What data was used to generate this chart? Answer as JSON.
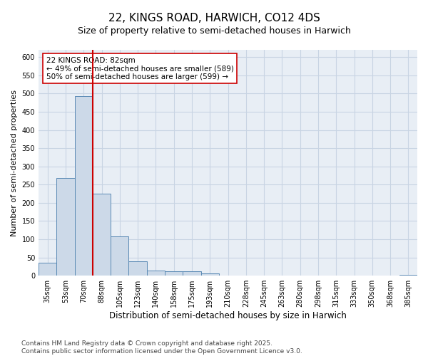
{
  "title": "22, KINGS ROAD, HARWICH, CO12 4DS",
  "subtitle": "Size of property relative to semi-detached houses in Harwich",
  "xlabel": "Distribution of semi-detached houses by size in Harwich",
  "ylabel": "Number of semi-detached properties",
  "categories": [
    "35sqm",
    "53sqm",
    "70sqm",
    "88sqm",
    "105sqm",
    "123sqm",
    "140sqm",
    "158sqm",
    "175sqm",
    "193sqm",
    "210sqm",
    "228sqm",
    "245sqm",
    "263sqm",
    "280sqm",
    "298sqm",
    "315sqm",
    "333sqm",
    "350sqm",
    "368sqm",
    "385sqm"
  ],
  "values": [
    35,
    268,
    493,
    225,
    108,
    40,
    15,
    13,
    13,
    7,
    1,
    0,
    1,
    0,
    0,
    0,
    0,
    0,
    1,
    0,
    2
  ],
  "bar_color": "#ccd9e8",
  "bar_edge_color": "#5b8ab5",
  "vline_color": "#cc0000",
  "annotation_text": "22 KINGS ROAD: 82sqm\n← 49% of semi-detached houses are smaller (589)\n50% of semi-detached houses are larger (599) →",
  "annotation_box_color": "#ffffff",
  "annotation_box_edge": "#cc0000",
  "ylim": [
    0,
    620
  ],
  "yticks": [
    0,
    50,
    100,
    150,
    200,
    250,
    300,
    350,
    400,
    450,
    500,
    550,
    600
  ],
  "grid_color": "#c8d4e3",
  "bg_color": "#e8eef5",
  "footer": "Contains HM Land Registry data © Crown copyright and database right 2025.\nContains public sector information licensed under the Open Government Licence v3.0.",
  "title_fontsize": 11,
  "subtitle_fontsize": 9,
  "xlabel_fontsize": 8.5,
  "ylabel_fontsize": 8,
  "tick_fontsize": 7,
  "footer_fontsize": 6.5,
  "annot_fontsize": 7.5
}
